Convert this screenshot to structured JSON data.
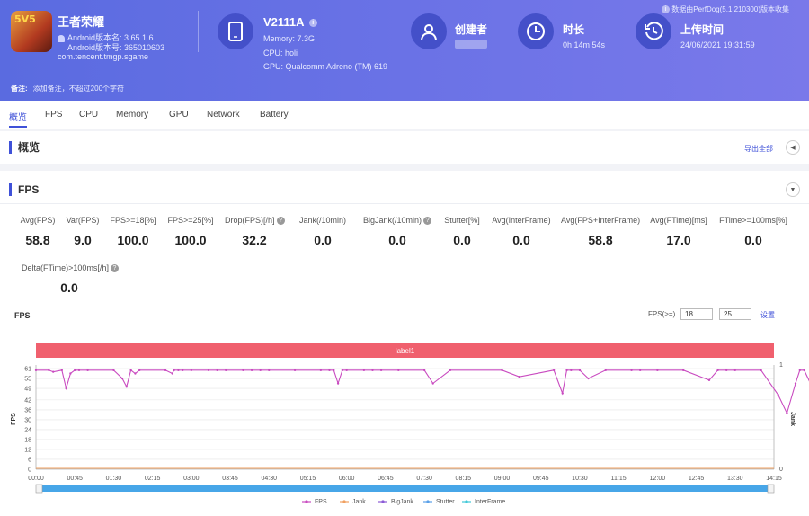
{
  "app": {
    "name": "王者荣耀",
    "version_name": "Android版本名: 3.65.1.6",
    "version_code": "Android版本号: 365010603",
    "package": "com.tencent.tmgp.sgame",
    "icon_text": "5V5"
  },
  "device": {
    "model": "V2111A",
    "memory": "Memory: 7.3G",
    "cpu": "CPU: holi",
    "gpu": "GPU: Qualcomm Adreno (TM) 619"
  },
  "creator": {
    "label": "创建者"
  },
  "duration": {
    "label": "时长",
    "value": "0h 14m 54s"
  },
  "upload": {
    "label": "上传时间",
    "value": "24/06/2021 19:31:59"
  },
  "collected_by": "数据由PerfDog(5.1.210300)版本收集",
  "remark": {
    "label": "备注:",
    "placeholder": "添加备注，不超过200个字符"
  },
  "tabs": [
    "概览",
    "FPS",
    "CPU",
    "Memory",
    "GPU",
    "Network",
    "Battery"
  ],
  "overview": {
    "title": "概览",
    "export": "导出全部"
  },
  "fps_section": {
    "title": "FPS"
  },
  "metrics": [
    {
      "label": "Avg(FPS)",
      "value": "58.8"
    },
    {
      "label": "Var(FPS)",
      "value": "9.0"
    },
    {
      "label": "FPS>=18[%]",
      "value": "100.0"
    },
    {
      "label": "FPS>=25[%]",
      "value": "100.0"
    },
    {
      "label": "Drop(FPS)[/h]",
      "value": "32.2"
    },
    {
      "label": "Jank(/10min)",
      "value": "0.0"
    },
    {
      "label": "BigJank(/10min)",
      "value": "0.0"
    },
    {
      "label": "Stutter[%]",
      "value": "0.0"
    },
    {
      "label": "Avg(InterFrame)",
      "value": "0.0"
    },
    {
      "label": "Avg(FPS+InterFrame)",
      "value": "58.8"
    },
    {
      "label": "Avg(FTime)[ms]",
      "value": "17.0"
    },
    {
      "label": "FTime>=100ms[%]",
      "value": "0.0"
    },
    {
      "label": "Delta(FTime)>100ms[/h]",
      "value": "0.0"
    }
  ],
  "fps_chart_ui": {
    "title": "FPS",
    "threshold_label": "FPS(>=)",
    "threshold_1": "18",
    "threshold_2": "25",
    "settings": "设置"
  },
  "chart_data": {
    "type": "line",
    "band_label": "label1",
    "ylabel": "FPS",
    "y2label": "Jank",
    "ylim": [
      0,
      61
    ],
    "yticks": [
      0,
      6,
      12,
      18,
      24,
      30,
      36,
      42,
      49,
      55,
      61
    ],
    "y2ticks": [
      0,
      1
    ],
    "xticks": [
      "00:00",
      "00:45",
      "01:30",
      "02:15",
      "03:00",
      "03:45",
      "04:30",
      "05:15",
      "06:00",
      "06:45",
      "07:30",
      "08:15",
      "09:00",
      "09:45",
      "10:30",
      "11:15",
      "12:00",
      "12:45",
      "13:30",
      "14:15"
    ],
    "x_seconds": [
      0,
      15,
      20,
      30,
      35,
      40,
      45,
      50,
      60,
      90,
      100,
      105,
      110,
      115,
      120,
      150,
      158,
      160,
      165,
      170,
      180,
      200,
      210,
      220,
      240,
      250,
      260,
      270,
      300,
      330,
      340,
      345,
      350,
      355,
      360,
      380,
      390,
      400,
      420,
      450,
      460,
      480,
      540,
      560,
      600,
      610,
      615,
      620,
      630,
      640,
      660,
      690,
      700,
      720,
      750,
      780,
      790,
      800,
      810,
      840,
      860,
      870,
      880,
      885,
      890,
      900
    ],
    "series": [
      {
        "name": "FPS",
        "values": [
          60,
          60,
          59,
          60,
          49,
          58,
          60,
          60,
          60,
          60,
          55,
          50,
          60,
          58,
          60,
          60,
          58,
          60,
          60,
          60,
          60,
          60,
          60,
          60,
          60,
          60,
          60,
          60,
          60,
          60,
          60,
          60,
          52,
          60,
          60,
          60,
          60,
          60,
          60,
          60,
          52,
          60,
          60,
          56,
          60,
          46,
          60,
          60,
          60,
          55,
          60,
          60,
          60,
          60,
          60,
          54,
          60,
          60,
          60,
          60,
          45,
          34,
          52,
          60,
          60,
          49
        ]
      },
      {
        "name": "Jank",
        "values": [
          0
        ]
      },
      {
        "name": "BigJank",
        "values": [
          0
        ]
      },
      {
        "name": "Stutter",
        "values": [
          0
        ]
      },
      {
        "name": "InterFrame",
        "values": [
          0
        ]
      }
    ],
    "colors": {
      "FPS": "#c94bc0",
      "Jank": "#f0a060",
      "BigJank": "#8c5bd6",
      "Stutter": "#5aa0e8",
      "InterFrame": "#40c8d8"
    },
    "band_color": "#f0606e"
  }
}
